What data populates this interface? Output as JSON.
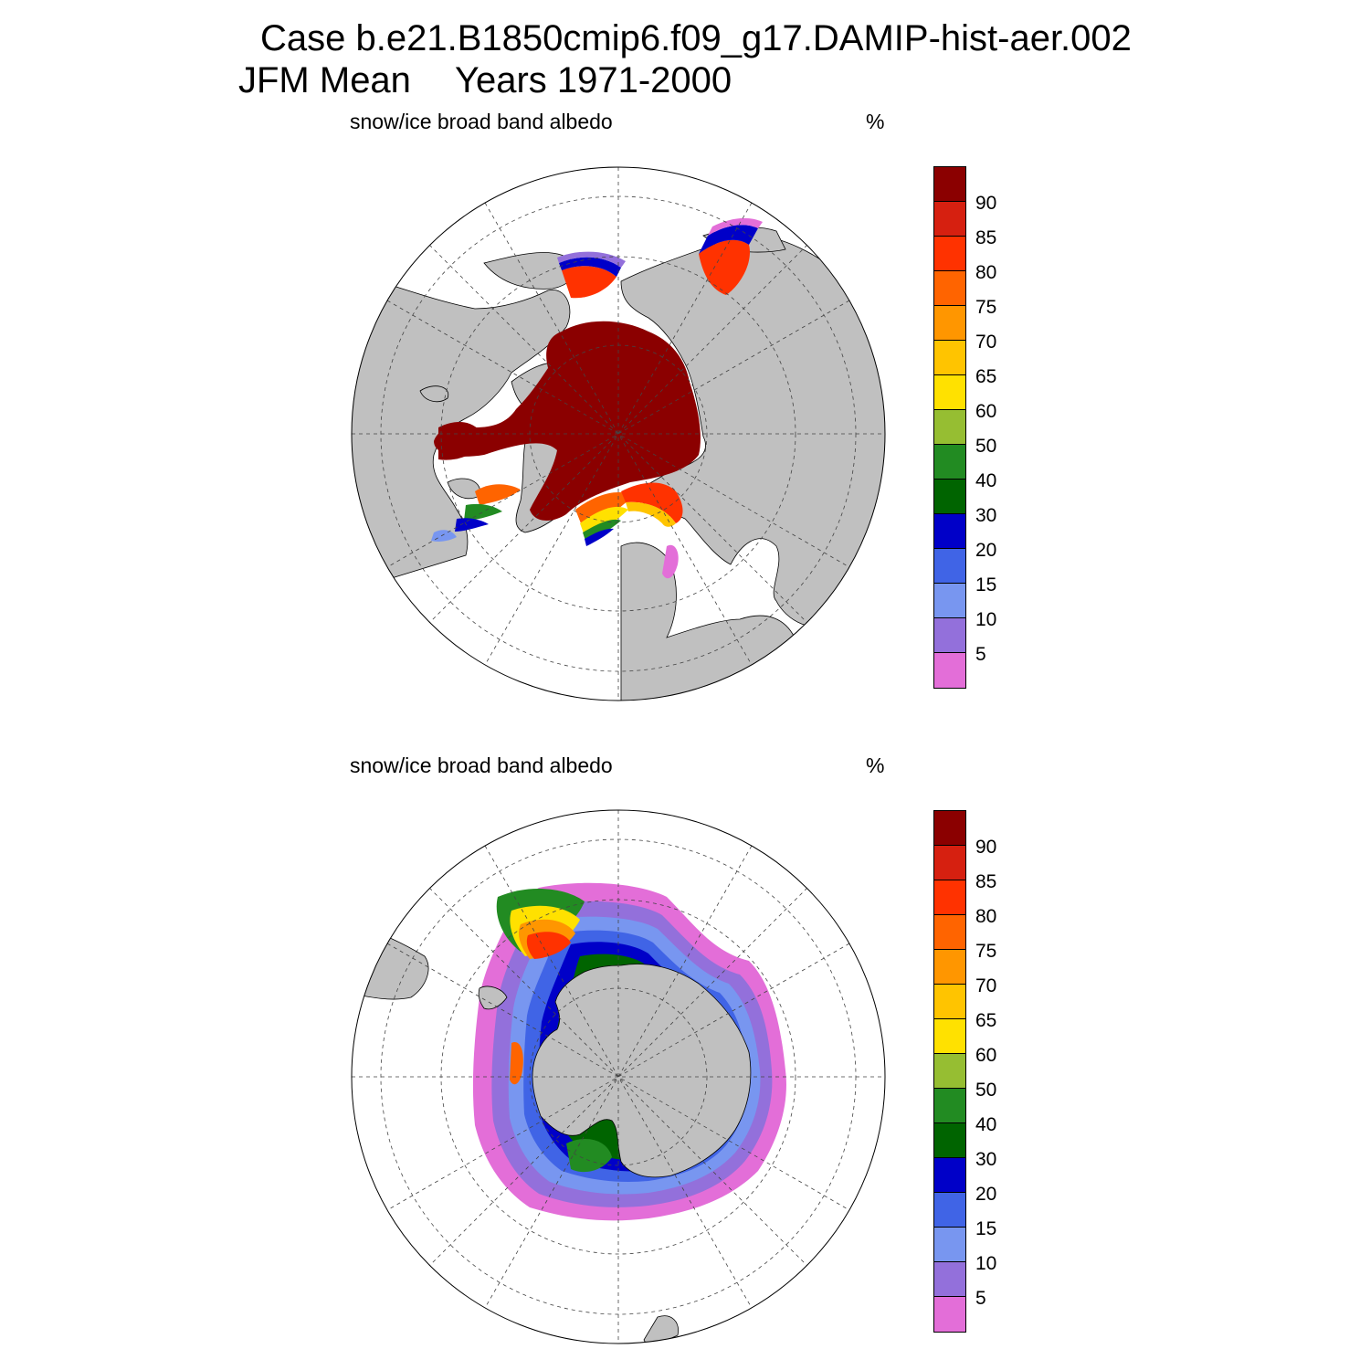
{
  "title": {
    "case": "Case b.e21.B1850cmip6.f09_g17.DAMIP-hist-aer.002",
    "season": "JFM Mean",
    "years": "Years 1971-2000"
  },
  "panels": [
    {
      "hemisphere": "north",
      "variable": "snow/ice broad band albedo",
      "units": "%"
    },
    {
      "hemisphere": "south",
      "variable": "snow/ice broad band albedo",
      "units": "%"
    }
  ],
  "colorbar": {
    "levels": [
      "90",
      "85",
      "80",
      "75",
      "70",
      "65",
      "60",
      "50",
      "40",
      "30",
      "20",
      "15",
      "10",
      "5"
    ],
    "colors": [
      "#8b0000",
      "#d62010",
      "#ff3200",
      "#ff6400",
      "#ff9600",
      "#ffc400",
      "#ffe100",
      "#96be32",
      "#228b22",
      "#006400",
      "#0000c8",
      "#4064e6",
      "#7896f0",
      "#9370db",
      "#e36ed8"
    ]
  },
  "map_colors": {
    "land": "#c0c0c0",
    "ocean": "#ffffff"
  }
}
